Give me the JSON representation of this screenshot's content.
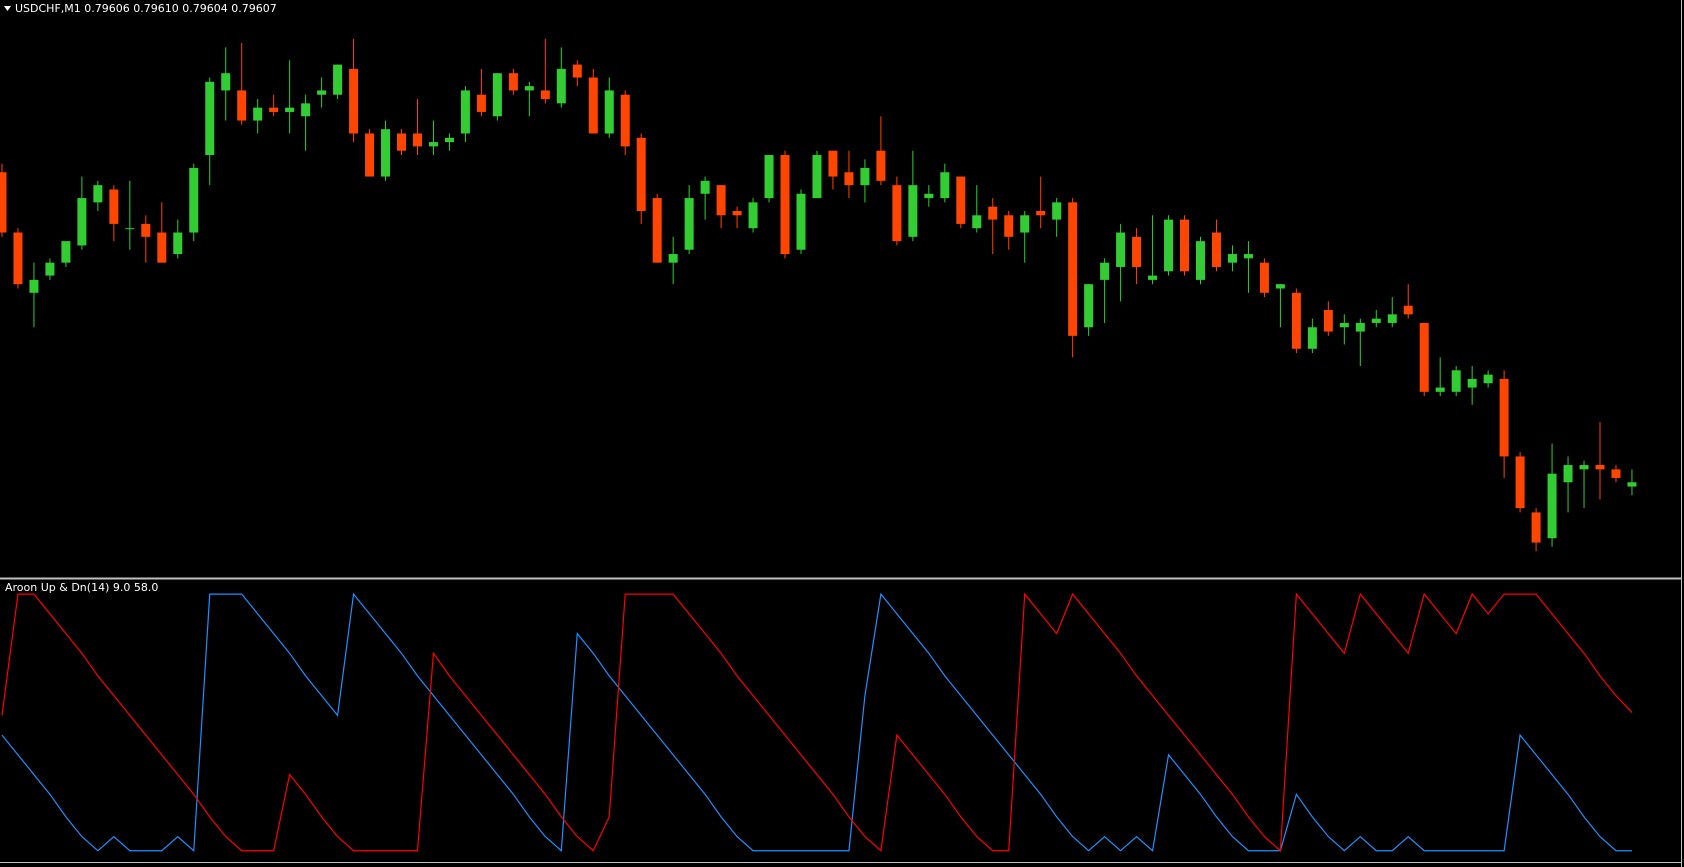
{
  "chart_data": [
    {
      "type": "candlestick",
      "title": "USDCHF,M1  0.79606 0.79610 0.79604 0.79607",
      "up_color": "#32cd32",
      "down_color": "#ff4500",
      "ylim": [
        0.79585,
        0.79719
      ],
      "open": [
        0.79679,
        0.79665,
        0.79651,
        0.79655,
        0.79658,
        0.79662,
        0.79672,
        0.79675,
        0.79666,
        0.79667,
        0.79665,
        0.7966,
        0.79665,
        0.79683,
        0.79698,
        0.79698,
        0.79691,
        0.79694,
        0.79693,
        0.79692,
        0.79697,
        0.79697,
        0.79703,
        0.79688,
        0.79678,
        0.79688,
        0.79688,
        0.79685,
        0.79686,
        0.79688,
        0.79697,
        0.79692,
        0.79702,
        0.79698,
        0.79698,
        0.79695,
        0.79704,
        0.79701,
        0.79688,
        0.79697,
        0.79687,
        0.79673,
        0.79658,
        0.79661,
        0.79674,
        0.79676,
        0.7967,
        0.79666,
        0.79673,
        0.79683,
        0.79661,
        0.79673,
        0.79684,
        0.79679,
        0.79676,
        0.79684,
        0.79676,
        0.79664,
        0.79673,
        0.79673,
        0.79678,
        0.79666,
        0.79671,
        0.79669,
        0.79665,
        0.7967,
        0.79668,
        0.79672,
        0.79643,
        0.79654,
        0.79657,
        0.79664,
        0.79654,
        0.79656,
        0.79668,
        0.79654,
        0.79665,
        0.79658,
        0.79659,
        0.79658,
        0.79652,
        0.79651,
        0.79638,
        0.79647,
        0.79643,
        0.79642,
        0.79644,
        0.79644,
        0.79648,
        0.79644,
        0.79628,
        0.79628,
        0.79629,
        0.7963,
        0.79631,
        0.79613,
        0.796,
        0.79594,
        0.79607,
        0.7961,
        0.79611,
        0.7961,
        0.79606
      ],
      "high": [
        0.79681,
        0.79666,
        0.79658,
        0.79659,
        0.79663,
        0.79678,
        0.79677,
        0.79676,
        0.79677,
        0.79669,
        0.79672,
        0.79668,
        0.79681,
        0.79701,
        0.79708,
        0.79709,
        0.79696,
        0.79697,
        0.79705,
        0.79697,
        0.79701,
        0.79704,
        0.7971,
        0.79689,
        0.79691,
        0.79689,
        0.79696,
        0.79691,
        0.79688,
        0.79699,
        0.79703,
        0.79702,
        0.79703,
        0.797,
        0.7971,
        0.79708,
        0.79705,
        0.79703,
        0.79701,
        0.79698,
        0.79688,
        0.79674,
        0.79664,
        0.79676,
        0.79678,
        0.79676,
        0.79671,
        0.79673,
        0.79683,
        0.79684,
        0.79675,
        0.79684,
        0.79684,
        0.79684,
        0.79682,
        0.79692,
        0.79678,
        0.79684,
        0.79676,
        0.79681,
        0.79678,
        0.79676,
        0.79673,
        0.7967,
        0.7967,
        0.79678,
        0.79673,
        0.79673,
        0.79653,
        0.79659,
        0.79667,
        0.79666,
        0.79669,
        0.79669,
        0.79669,
        0.79664,
        0.79668,
        0.79662,
        0.79663,
        0.79659,
        0.79653,
        0.79652,
        0.79645,
        0.79649,
        0.79646,
        0.79645,
        0.79647,
        0.7965,
        0.79653,
        0.79644,
        0.79636,
        0.79634,
        0.79634,
        0.79633,
        0.79633,
        0.79614,
        0.79601,
        0.79616,
        0.79613,
        0.79612,
        0.79621,
        0.79611,
        0.7961
      ],
      "low": [
        0.79664,
        0.79652,
        0.79643,
        0.79654,
        0.79657,
        0.79661,
        0.7967,
        0.79663,
        0.79661,
        0.79658,
        0.79658,
        0.79659,
        0.79663,
        0.79676,
        0.79691,
        0.7969,
        0.79688,
        0.79692,
        0.79688,
        0.79684,
        0.79694,
        0.79696,
        0.79686,
        0.79678,
        0.79677,
        0.79683,
        0.79683,
        0.79683,
        0.79684,
        0.79686,
        0.79692,
        0.79691,
        0.79697,
        0.79692,
        0.79695,
        0.79694,
        0.79699,
        0.79688,
        0.79687,
        0.79683,
        0.79667,
        0.79658,
        0.79653,
        0.7966,
        0.79668,
        0.79666,
        0.79666,
        0.79665,
        0.79672,
        0.79659,
        0.7966,
        0.79673,
        0.79675,
        0.79673,
        0.79672,
        0.79676,
        0.79662,
        0.79663,
        0.79671,
        0.79672,
        0.79666,
        0.79665,
        0.7966,
        0.79661,
        0.79658,
        0.79666,
        0.79664,
        0.79636,
        0.79641,
        0.79644,
        0.79649,
        0.79653,
        0.79653,
        0.79655,
        0.79655,
        0.79653,
        0.79656,
        0.79656,
        0.79651,
        0.7965,
        0.79643,
        0.79637,
        0.79637,
        0.79641,
        0.79639,
        0.79634,
        0.79643,
        0.79643,
        0.79645,
        0.79627,
        0.79627,
        0.79627,
        0.79625,
        0.79629,
        0.79608,
        0.796,
        0.79591,
        0.79592,
        0.796,
        0.79601,
        0.79603,
        0.79607,
        0.79604
      ],
      "close": [
        0.79665,
        0.79653,
        0.79654,
        0.79658,
        0.79663,
        0.79673,
        0.79676,
        0.79667,
        0.79666,
        0.79664,
        0.79658,
        0.79665,
        0.7968,
        0.797,
        0.79702,
        0.79691,
        0.79694,
        0.79693,
        0.79694,
        0.79695,
        0.79698,
        0.79704,
        0.79688,
        0.79678,
        0.79689,
        0.79684,
        0.79685,
        0.79686,
        0.79687,
        0.79698,
        0.79693,
        0.79702,
        0.79698,
        0.79699,
        0.79696,
        0.79703,
        0.79701,
        0.79688,
        0.79698,
        0.79685,
        0.7967,
        0.79658,
        0.7966,
        0.79673,
        0.79677,
        0.79669,
        0.79669,
        0.79672,
        0.79683,
        0.7966,
        0.79674,
        0.79683,
        0.79678,
        0.79676,
        0.7968,
        0.79677,
        0.79663,
        0.79676,
        0.79674,
        0.79679,
        0.79667,
        0.79669,
        0.79668,
        0.79664,
        0.79669,
        0.79669,
        0.79672,
        0.79641,
        0.79653,
        0.79658,
        0.79665,
        0.79657,
        0.79655,
        0.79668,
        0.79656,
        0.79663,
        0.79657,
        0.7966,
        0.7966,
        0.79651,
        0.79653,
        0.79638,
        0.79643,
        0.79642,
        0.79644,
        0.79644,
        0.79645,
        0.79646,
        0.79646,
        0.79628,
        0.79629,
        0.79633,
        0.79631,
        0.79632,
        0.79613,
        0.79601,
        0.79593,
        0.79609,
        0.79611,
        0.79611,
        0.7961,
        0.79608,
        0.79607
      ]
    },
    {
      "type": "line",
      "title": "Aroon Up & Dn(14) 9.0 58.0",
      "ylim": [
        5,
        105
      ],
      "series": [
        {
          "color": "#1e90ff",
          "values": [
            50,
            43,
            36,
            29,
            21,
            14,
            9,
            14,
            9,
            9,
            9,
            14,
            9,
            100,
            100,
            100,
            93,
            86,
            79,
            71,
            64,
            57,
            100,
            93,
            86,
            79,
            71,
            64,
            57,
            50,
            43,
            36,
            29,
            21,
            14,
            9,
            86,
            79,
            71,
            64,
            57,
            50,
            43,
            36,
            29,
            21,
            14,
            9,
            9,
            9,
            9,
            9,
            9,
            9,
            64,
            100,
            93,
            86,
            79,
            71,
            64,
            57,
            50,
            43,
            36,
            29,
            21,
            14,
            9,
            14,
            9,
            14,
            9,
            43,
            36,
            29,
            21,
            14,
            9,
            9,
            9,
            29,
            21,
            14,
            9,
            14,
            9,
            9,
            14,
            9,
            9,
            9,
            9,
            9,
            9,
            50,
            43,
            36,
            29,
            21,
            14,
            9,
            9
          ]
        },
        {
          "color": "#ff0000",
          "values": [
            57,
            100,
            100,
            93,
            86,
            79,
            71,
            64,
            57,
            50,
            43,
            36,
            29,
            21,
            14,
            9,
            9,
            9,
            36,
            29,
            21,
            14,
            9,
            9,
            9,
            9,
            9,
            79,
            71,
            64,
            57,
            50,
            43,
            36,
            29,
            21,
            14,
            9,
            21,
            100,
            100,
            100,
            100,
            93,
            86,
            79,
            71,
            64,
            57,
            50,
            43,
            36,
            29,
            21,
            14,
            9,
            50,
            43,
            36,
            29,
            21,
            14,
            9,
            9,
            100,
            93,
            86,
            100,
            93,
            86,
            79,
            71,
            64,
            57,
            50,
            43,
            36,
            29,
            21,
            14,
            9,
            100,
            93,
            86,
            79,
            100,
            93,
            86,
            79,
            100,
            93,
            86,
            100,
            93,
            100,
            100,
            100,
            93,
            86,
            79,
            71,
            64,
            58
          ]
        }
      ]
    }
  ]
}
